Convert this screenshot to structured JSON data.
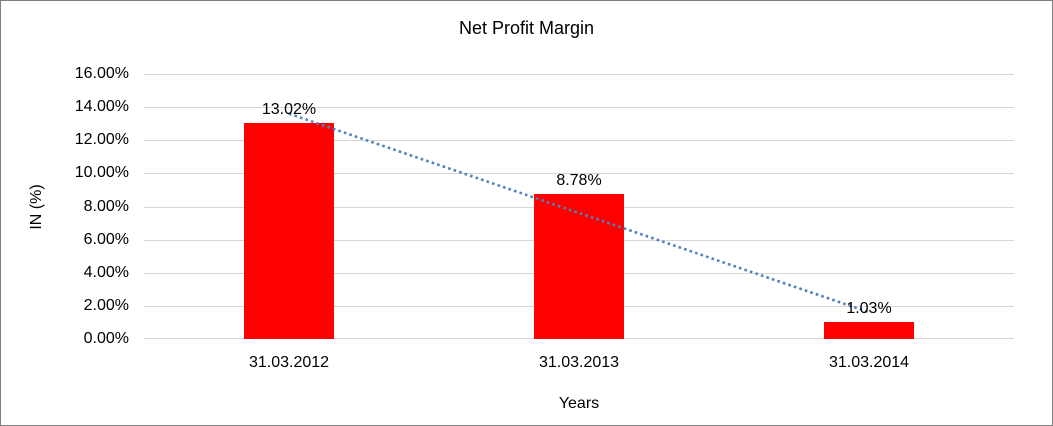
{
  "chart_data": {
    "type": "bar",
    "title": "Net Profit Margin",
    "xlabel": "Years",
    "ylabel": "IN (%)",
    "categories": [
      "31.03.2012",
      "31.03.2013",
      "31.03.2014"
    ],
    "values": [
      13.02,
      8.78,
      1.03
    ],
    "value_labels": [
      "13.02%",
      "8.78%",
      "1.03%"
    ],
    "y_ticks": [
      "0.00%",
      "2.00%",
      "4.00%",
      "6.00%",
      "8.00%",
      "10.00%",
      "12.00%",
      "14.00%",
      "16.00%"
    ],
    "ylim": [
      0,
      16
    ],
    "y_step": 2,
    "grid": true,
    "legend": "none",
    "colors": {
      "bar": "#ff0000",
      "trendline": "#4f81bd",
      "gridline": "#d6d6d6",
      "text": "#000000",
      "background": "#ffffff"
    },
    "trendline": {
      "kind": "linear",
      "style": "dotted"
    }
  }
}
